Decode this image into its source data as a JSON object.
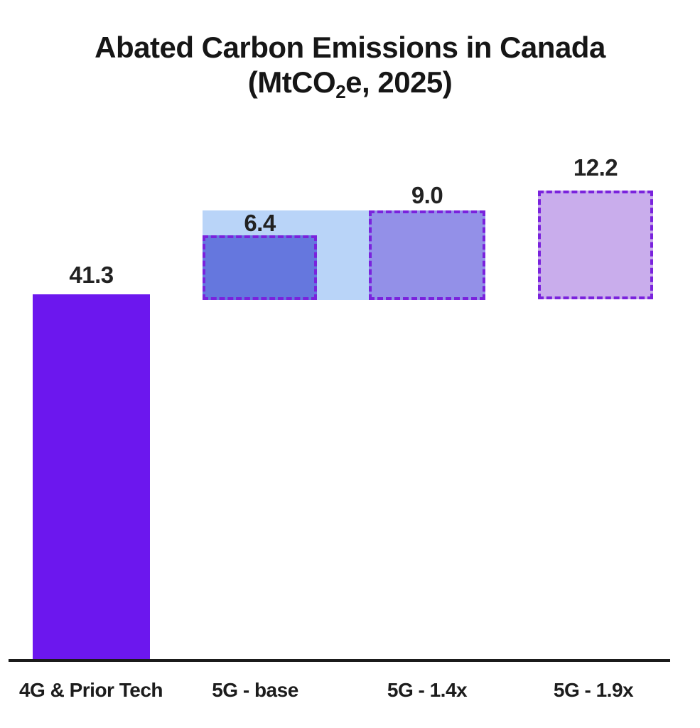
{
  "title": {
    "line1": "Abated Carbon Emissions in Canada",
    "line2_prefix": "(MtCO",
    "line2_subscript": "2",
    "line2_suffix": "e, 2025)"
  },
  "chart_data": {
    "type": "bar",
    "title": "Abated Carbon Emissions in Canada (MtCO2e, 2025)",
    "unit": "MtCO2e",
    "year": "2025",
    "categories": [
      "4G & Prior Tech",
      "5G - base",
      "5G - 1.4x",
      "5G - 1.9x"
    ],
    "values": [
      41.3,
      6.4,
      9.0,
      12.2
    ],
    "value_labels": [
      "41.3",
      "6.4",
      "9.0",
      "12.2"
    ],
    "ylim": [
      0,
      45
    ],
    "grid": false,
    "legend": false,
    "layout_hints": "First bar is solid and anchored to the x-axis; the three 5G scenario values are dashed-outline boxes floating near the top, sharing a common bottom edge; a light blue band spans behind the 5G-base and 5G-1.4x boxes.",
    "series": [
      {
        "name": "4G & Prior Tech",
        "value": 41.3,
        "style": "solid",
        "color": "#6C17EE"
      },
      {
        "name": "5G - base",
        "value": 6.4,
        "style": "dashed-box",
        "color": "#6577DE"
      },
      {
        "name": "5G - 1.4x",
        "value": 9.0,
        "style": "dashed-box",
        "color": "#9390E8"
      },
      {
        "name": "5G - 1.9x",
        "value": 12.2,
        "style": "dashed-box",
        "color": "#C9ADEC"
      }
    ]
  },
  "colors": {
    "bar_4g": "#6C17EE",
    "box_5g_base": "#6577DE",
    "box_5g_14x": "#9390E8",
    "box_5g_19x": "#C9ADEC",
    "band_light_blue": "#B9D4F8",
    "dashed_border": "#7A22DD",
    "axis_line": "#1B1B1B",
    "text": "#1C1C1C"
  }
}
